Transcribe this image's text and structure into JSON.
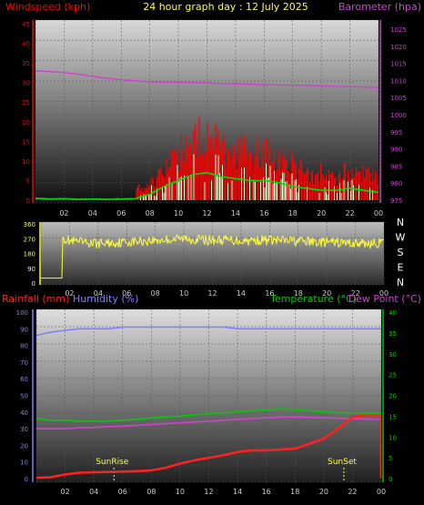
{
  "colors": {
    "windspeed": "#ff0000",
    "windgust": "#ff0000",
    "windavg": "#00dd00",
    "windlow": "#e0ffd0",
    "barometer": "#cc44cc",
    "direction": "#ffff33",
    "rainfall": "#ff2020",
    "humidity": "#8080ff",
    "temperature": "#00cc00",
    "dewpoint": "#cc44cc",
    "sun": "#ffff33"
  },
  "chart_data": [
    {
      "type": "line",
      "title": "24 hour graph day : 12 July 2025",
      "ylabel_left": "Windspeed (kph)",
      "ylabel_right": "Barometer (hpa)",
      "ylim_left": [
        0,
        45
      ],
      "ylim_right": [
        975,
        1025
      ],
      "yticks_left": [
        "0",
        "5",
        "10",
        "15",
        "20",
        "25",
        "30",
        "35",
        "40",
        "45"
      ],
      "yticks_right": [
        "975",
        "980",
        "985",
        "990",
        "995",
        "1000",
        "1005",
        "1010",
        "1015",
        "1020",
        "1025"
      ],
      "xticks": [
        "02",
        "04",
        "06",
        "08",
        "10",
        "12",
        "14",
        "16",
        "18",
        "20",
        "22",
        "00"
      ],
      "series": [
        {
          "name": "Barometer (hpa)",
          "x": [
            0,
            1,
            2,
            3,
            4,
            5,
            6,
            7,
            8,
            9,
            10,
            11,
            12,
            13,
            14,
            15,
            16,
            17,
            18,
            19,
            20,
            21,
            22,
            23,
            24
          ],
          "y": [
            1012.8,
            1012.6,
            1012.3,
            1011.8,
            1011.2,
            1010.6,
            1010.2,
            1009.9,
            1009.6,
            1009.5,
            1009.5,
            1009.4,
            1009.3,
            1009.1,
            1009.0,
            1008.9,
            1008.8,
            1008.7,
            1008.6,
            1008.5,
            1008.4,
            1008.3,
            1008.2,
            1008.1,
            1007.9
          ]
        },
        {
          "name": "Windspeed (kph)",
          "x": [
            0,
            1,
            2,
            3,
            4,
            5,
            6,
            7,
            8,
            9,
            10,
            11,
            12,
            13,
            14,
            15,
            16,
            17,
            18,
            19,
            20,
            21,
            22,
            23,
            24
          ],
          "y": [
            0.5,
            0.3,
            0.4,
            0.2,
            0.3,
            0.2,
            0.3,
            0.4,
            1.5,
            3.5,
            5.0,
            6.5,
            7.0,
            6.0,
            5.5,
            5.0,
            5.0,
            4.5,
            3.5,
            3.0,
            2.5,
            2.5,
            3.0,
            2.5,
            2.0
          ]
        }
      ]
    },
    {
      "type": "scatter",
      "ylim": [
        0,
        360
      ],
      "yticks": [
        "0",
        "90",
        "180",
        "270",
        "360"
      ],
      "compass": [
        "N",
        "W",
        "S",
        "E",
        "N"
      ],
      "xticks": [
        "02",
        "04",
        "06",
        "08",
        "10",
        "12",
        "14",
        "16",
        "18",
        "20",
        "22",
        "00"
      ],
      "series": [
        {
          "name": "Wind direction",
          "x": [
            0,
            1.5,
            1.5,
            2,
            3,
            4,
            5,
            6,
            7,
            8,
            9,
            10,
            11,
            12,
            13,
            14,
            15,
            16,
            17,
            18,
            19,
            20,
            21,
            22,
            23,
            24
          ],
          "y": [
            30,
            30,
            280,
            255,
            245,
            240,
            245,
            250,
            255,
            260,
            265,
            270,
            265,
            260,
            262,
            258,
            260,
            262,
            258,
            255,
            250,
            248,
            245,
            242,
            240,
            245
          ]
        }
      ]
    },
    {
      "type": "line",
      "ylabel_left": "Rainfall (mm)",
      "ylabel_left2": "Humidity (%)",
      "ylabel_right": "Temperature (°C)",
      "ylabel_right2": "Dew Point (°C)",
      "ylim_left": [
        0,
        100
      ],
      "ylim_right": [
        0,
        40
      ],
      "yticks_left": [
        "0",
        "10",
        "20",
        "30",
        "40",
        "50",
        "60",
        "70",
        "80",
        "90",
        "100"
      ],
      "yticks_right": [
        "0",
        "5",
        "10",
        "15",
        "20",
        "25",
        "30",
        "35",
        "40"
      ],
      "xticks": [
        "02",
        "04",
        "06",
        "08",
        "10",
        "12",
        "14",
        "16",
        "18",
        "20",
        "22",
        "00"
      ],
      "annotations": [
        {
          "label": "SunRise",
          "x": 5.4
        },
        {
          "label": "SunSet",
          "x": 21.4
        }
      ],
      "series": [
        {
          "name": "Humidity (%)",
          "x": [
            0,
            1,
            2,
            3,
            4,
            5,
            6,
            7,
            8,
            9,
            10,
            11,
            12,
            13,
            14,
            15,
            16,
            17,
            18,
            19,
            20,
            21,
            22,
            23,
            24
          ],
          "y": [
            86,
            88,
            89,
            90,
            90,
            90,
            91,
            91,
            91,
            91,
            91,
            91,
            91,
            91,
            90,
            90,
            90,
            90,
            90,
            90,
            90,
            90,
            90,
            90,
            90
          ]
        },
        {
          "name": "Rainfall (mm)",
          "x": [
            0,
            1,
            2,
            3,
            4,
            5,
            6,
            7,
            8,
            9,
            10,
            11,
            12,
            13,
            14,
            15,
            16,
            17,
            18,
            19,
            20,
            21,
            22,
            23,
            24
          ],
          "y": [
            0.5,
            0.8,
            2.5,
            3.5,
            3.8,
            4.0,
            4.2,
            4.5,
            5.0,
            6.5,
            9.0,
            11.0,
            12.5,
            14.0,
            16.0,
            17.0,
            17.0,
            17.5,
            18.0,
            21.0,
            24.0,
            30.0,
            37.0,
            38.0,
            0
          ]
        },
        {
          "name": "Temperature (°C)",
          "x": [
            0,
            1,
            2,
            3,
            4,
            5,
            6,
            7,
            8,
            9,
            10,
            11,
            12,
            13,
            14,
            15,
            16,
            17,
            18,
            19,
            20,
            21,
            22,
            23,
            24
          ],
          "y": [
            14.5,
            14.0,
            14.0,
            13.8,
            13.8,
            13.8,
            14.0,
            14.2,
            14.6,
            14.8,
            15.0,
            15.3,
            15.6,
            15.8,
            16.0,
            16.3,
            16.5,
            16.8,
            16.6,
            16.3,
            16.0,
            15.8,
            15.8,
            15.7,
            15.7
          ]
        },
        {
          "name": "Dew Point (°C)",
          "x": [
            0,
            1,
            2,
            3,
            4,
            5,
            6,
            7,
            8,
            9,
            10,
            11,
            12,
            13,
            14,
            15,
            16,
            17,
            18,
            19,
            20,
            21,
            22,
            23,
            24
          ],
          "y": [
            12.0,
            12.0,
            12.0,
            12.2,
            12.3,
            12.5,
            12.6,
            12.8,
            13.0,
            13.2,
            13.4,
            13.6,
            13.8,
            14.0,
            14.2,
            14.4,
            14.6,
            14.8,
            14.8,
            14.7,
            14.6,
            14.5,
            14.4,
            14.3,
            14.2
          ]
        }
      ]
    }
  ]
}
